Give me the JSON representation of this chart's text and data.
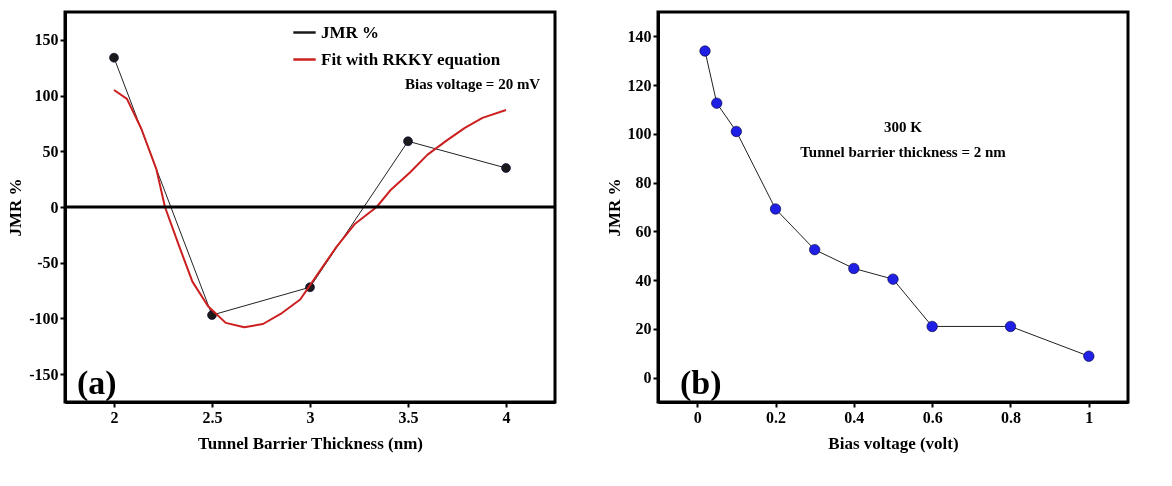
{
  "chart_data": [
    {
      "type": "line",
      "xlabel": "Tunnel Barrier Thickness (nm)",
      "ylabel": "JMR %",
      "xlim": [
        1.75,
        4.25
      ],
      "ylim": [
        -175,
        175
      ],
      "xticks": [
        2,
        2.5,
        3,
        3.5,
        4
      ],
      "yticks": [
        -150,
        -100,
        -50,
        0,
        50,
        100,
        150
      ],
      "grid": false,
      "legend": "top right",
      "series": [
        {
          "name": "JMR %",
          "marker": "circle",
          "color": "#1a1a1a",
          "x": [
            2,
            2.5,
            3,
            3.5,
            4
          ],
          "values": [
            134,
            -97,
            -72,
            59,
            35
          ]
        },
        {
          "name": "Fit with RKKY equation",
          "marker": "none",
          "color": "#cc1f1f",
          "x": [
            2,
            2.066,
            2.14,
            2.216,
            2.26,
            2.33,
            2.4,
            2.48,
            2.57,
            2.665,
            2.76,
            2.85,
            2.95,
            3.04,
            3.13,
            3.23,
            3.34,
            3.41,
            3.51,
            3.6,
            3.7,
            3.79,
            3.88,
            4
          ],
          "values": [
            105,
            97,
            70,
            34,
            0,
            -34,
            -67,
            -89,
            -104,
            -108,
            -105,
            -96,
            -83,
            -60,
            -37,
            -15,
            0,
            15,
            31,
            47,
            60,
            71,
            80,
            87
          ]
        }
      ],
      "ref_lines": [
        {
          "axis": "y",
          "value": 0,
          "color": "#000000"
        }
      ],
      "annotations": [
        "Bias voltage = 20 mV",
        "(a)"
      ]
    },
    {
      "type": "line",
      "xlabel": "Bias voltage (volt)",
      "ylabel": "JMR %",
      "xlim": [
        -0.1,
        1.1
      ],
      "ylim": [
        -10,
        150
      ],
      "xticks": [
        0,
        0.2,
        0.4,
        0.6,
        0.8,
        1
      ],
      "yticks": [
        0,
        20,
        40,
        60,
        80,
        100,
        120,
        140
      ],
      "grid": false,
      "legend": false,
      "series": [
        {
          "marker": "circle",
          "color": "#1f1fe6",
          "x": [
            0.02,
            0.05,
            0.1,
            0.2,
            0.3,
            0.4,
            0.5,
            0.6,
            0.8,
            1
          ],
          "values": [
            134,
            112.6,
            101,
            69.2,
            52.5,
            44.8,
            40.4,
            21,
            21,
            8.8
          ]
        }
      ],
      "annotations": [
        "300 K",
        "Tunnel barrier thickness = 2 nm",
        "(b)"
      ]
    }
  ]
}
